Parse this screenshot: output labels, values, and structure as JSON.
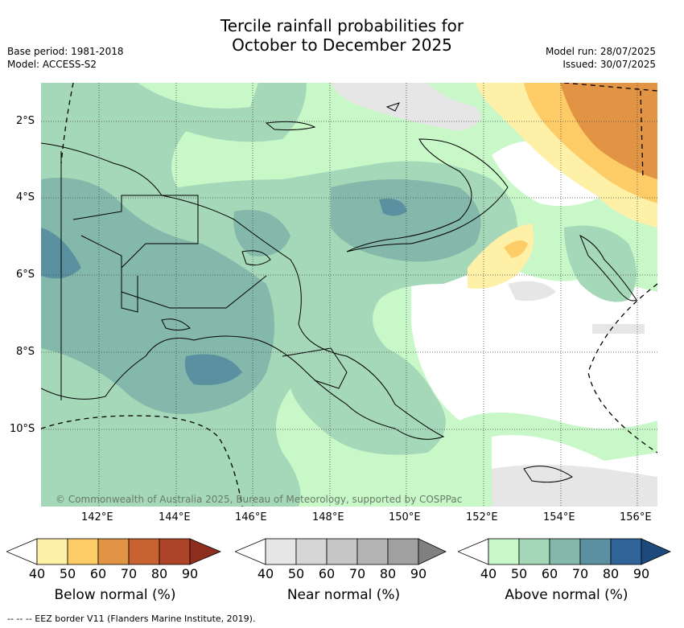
{
  "title_line1": "Tercile rainfall probabilities for",
  "title_line2": "October to December 2025",
  "meta_left": [
    "Base period: 1981-2018",
    "Model: ACCESS-S2"
  ],
  "meta_right": [
    "Model run: 28/07/2025",
    "Issued: 30/07/2025"
  ],
  "lat_labels": [
    "2°S",
    "4°S",
    "6°S",
    "8°S",
    "10°S"
  ],
  "lon_labels": [
    "142°E",
    "144°E",
    "146°E",
    "148°E",
    "150°E",
    "152°E",
    "154°E",
    "156°E"
  ],
  "credit": "© Commonwealth of Australia 2025, Bureau of Meteorology, supported by COSPPac",
  "colorbars": [
    {
      "label": "Below normal (%)",
      "ticks": [
        "40",
        "50",
        "60",
        "70",
        "80",
        "90"
      ],
      "colors": [
        "#fff0a8",
        "#fdcc66",
        "#e09444",
        "#c86230",
        "#ad4428",
        "#8c2d1e"
      ]
    },
    {
      "label": "Near normal (%)",
      "ticks": [
        "40",
        "50",
        "60",
        "70",
        "80",
        "90"
      ],
      "colors": [
        "#e6e6e6",
        "#d6d6d6",
        "#c6c6c6",
        "#b4b4b4",
        "#a0a0a0",
        "#808080"
      ]
    },
    {
      "label": "Above normal (%)",
      "ticks": [
        "40",
        "50",
        "60",
        "70",
        "80",
        "90"
      ],
      "colors": [
        "#c8f8c8",
        "#a4d8b8",
        "#84b8aa",
        "#5a90a0",
        "#306498",
        "#1c4a7c"
      ]
    }
  ],
  "footnote": "--  --  -- EEZ border V11 (Flanders Marine Institute, 2019)."
}
